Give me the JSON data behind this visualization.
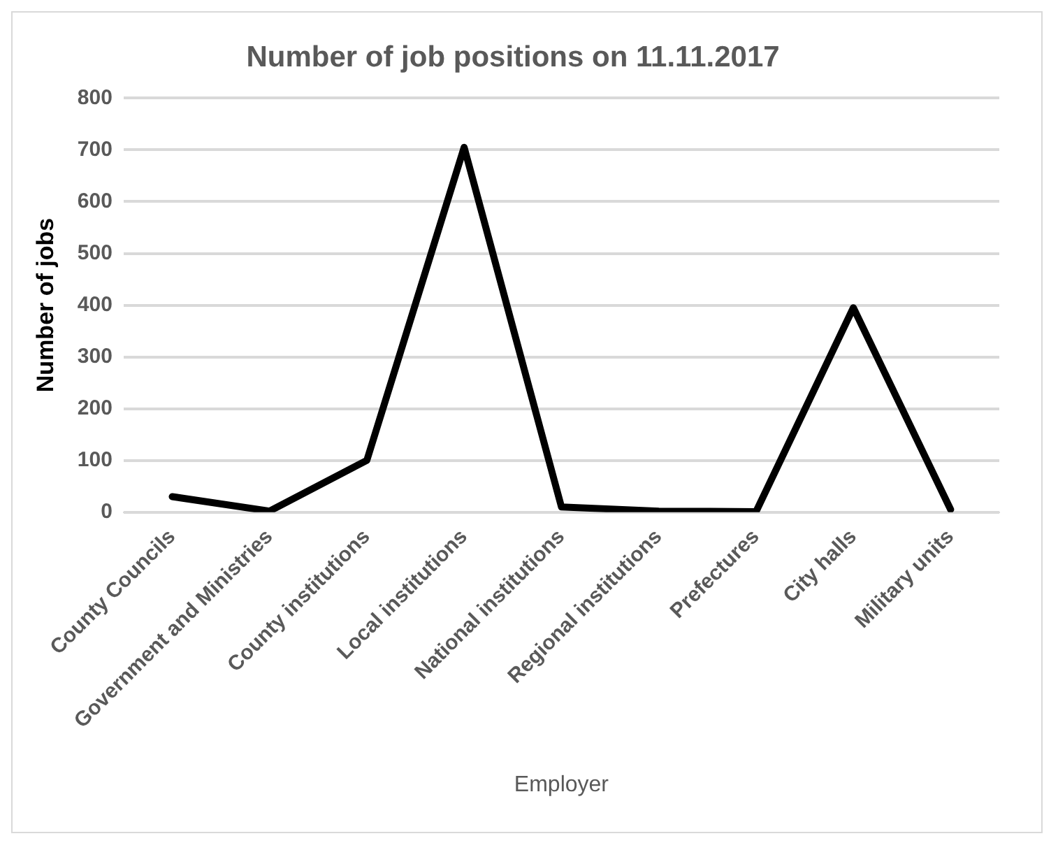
{
  "chart_data": {
    "type": "line",
    "title": "Number of job positions on 11.11.2017",
    "xlabel": "Employer",
    "ylabel": "Number of jobs",
    "categories": [
      "County Councils",
      "Government and Ministries",
      "County institutions",
      "Local institutions",
      "National institutions",
      "Regional institutions",
      "Prefectures",
      "City halls",
      "Military units"
    ],
    "series": [
      {
        "color": "#000000",
        "values": [
          30,
          2,
          100,
          705,
          10,
          2,
          1,
          395,
          5
        ]
      }
    ],
    "ylim": [
      0,
      800
    ],
    "yticks": [
      0,
      100,
      200,
      300,
      400,
      500,
      600,
      700,
      800
    ],
    "grid": "y",
    "legend": false,
    "marker": "none",
    "line_style": "solid"
  }
}
